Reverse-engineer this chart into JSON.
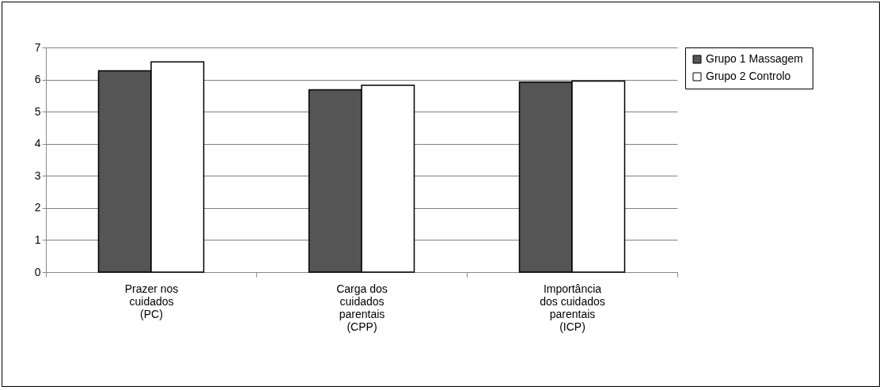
{
  "chart_data": {
    "type": "bar",
    "categories": [
      "Prazer nos cuidados (PC)",
      "Carga dos cuidados parentais (CPP)",
      "Importância dos cuidados parentais (ICP)"
    ],
    "series": [
      {
        "name": "Grupo 1  Massagem",
        "color": "#555555",
        "values": [
          6.27,
          5.68,
          5.92
        ]
      },
      {
        "name": "Grupo 2  Controlo",
        "color": "#ffffff",
        "values": [
          6.55,
          5.82,
          5.95
        ]
      }
    ],
    "ylim": [
      0,
      7
    ],
    "yticks": [
      0,
      1,
      2,
      3,
      4,
      5,
      6,
      7
    ],
    "grid": "y",
    "legend": "right"
  }
}
